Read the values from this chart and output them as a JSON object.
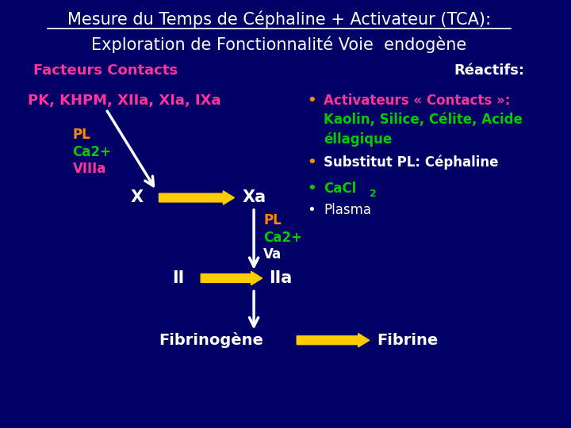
{
  "bg_color": "#000066",
  "title_line1": "Mesure du Temps de Céphaline + Activateur (TCA):",
  "title_line2": "Exploration de Fonctionnalité Voie  endogène",
  "title_color": "#ffffff",
  "title_fontsize": 15,
  "facteurs_label": "Facteurs Contacts",
  "facteurs_color": "#ff3399",
  "reactifs_label": "Réactifs:",
  "reactifs_color": "#ffffff",
  "pk_label": "PK, KHPM, XIIa, XIa, IXa",
  "pk_color": "#ff3399",
  "pl_label1": "PL",
  "ca2_label1": "Ca2+",
  "viiia_label": "VIIIa",
  "cofactor1_color_pl": "#ff8800",
  "cofactor1_color_ca2": "#00cc00",
  "cofactor1_color_viiia": "#ff3399",
  "X_label": "X",
  "Xa_label": "Xa",
  "X_color": "#ffffff",
  "pl_label2": "PL",
  "ca2_label2": "Ca2+",
  "va_label": "Va",
  "cofactor2_color_pl": "#ff8800",
  "cofactor2_color_ca2": "#00cc00",
  "cofactor2_color_va": "#ffffff",
  "II_label": "II",
  "IIa_label": "IIa",
  "II_color": "#ffffff",
  "fibrinogene_label": "Fibrinogène",
  "fibrine_label": "Fibrine",
  "fibrin_color": "#ffffff",
  "reactif1_bullet": "•",
  "reactif1_text1": "Activateurs « Contacts »:",
  "reactif1_text2": "Kaolin, Silice, Célite, Acide",
  "reactif1_text3": "éllagique",
  "reactif1_color_bullet": "#ff8800",
  "reactif1_color_text": "#ff3399",
  "reactif1_color_kaolin": "#00cc00",
  "reactif2_bullet": "•",
  "reactif2_text": "Substitut PL: Céphaline",
  "reactif2_color_bullet": "#ff8800",
  "reactif2_color_text": "#ffffff",
  "reactif3_bullet": "•",
  "reactif3_text": "CaCl",
  "reactif3_subscript": "2",
  "reactif3_color_bullet": "#00cc00",
  "reactif3_color_text": "#00cc00",
  "reactif4_bullet": "•",
  "reactif4_text": "Plasma",
  "reactif4_color_bullet": "#ffffff",
  "reactif4_color_text": "#ffffff",
  "arrow_color_yellow": "#ffcc00",
  "arrow_color_white": "#ffffff",
  "figsize": [
    7.2,
    5.4
  ],
  "dpi": 100
}
